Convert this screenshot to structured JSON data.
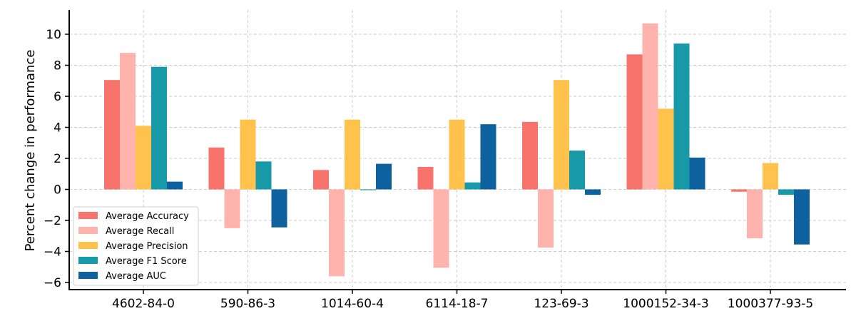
{
  "chart_data": {
    "type": "bar",
    "title": "",
    "xlabel": "",
    "ylabel": "Percent change in performance",
    "ylim": [
      -6.4,
      11.5
    ],
    "yticks": [
      -6,
      -4,
      -2,
      0,
      2,
      4,
      6,
      8,
      10
    ],
    "grid": true,
    "legend_position": "lower-left",
    "categories": [
      "4602-84-0",
      "590-86-3",
      "1014-60-4",
      "6114-18-7",
      "123-69-3",
      "1000152-34-3",
      "1000377-93-5"
    ],
    "series": [
      {
        "name": "Average Accuracy",
        "color": "#f8736b",
        "values": [
          7.05,
          2.7,
          1.25,
          1.45,
          4.35,
          8.7,
          -0.15
        ]
      },
      {
        "name": "Average Recall",
        "color": "#ffb3ad",
        "values": [
          8.8,
          -2.5,
          -5.6,
          -5.05,
          -3.75,
          10.7,
          -3.15
        ]
      },
      {
        "name": "Average Precision",
        "color": "#ffc34d",
        "values": [
          4.1,
          4.5,
          4.5,
          4.5,
          7.05,
          5.2,
          1.7
        ]
      },
      {
        "name": "Average F1 Score",
        "color": "#1899a8",
        "values": [
          7.9,
          1.8,
          -0.05,
          0.45,
          2.5,
          9.4,
          -0.35
        ]
      },
      {
        "name": "Average AUC",
        "color": "#0d619e",
        "values": [
          0.5,
          -2.45,
          1.65,
          4.2,
          -0.35,
          2.05,
          -3.55
        ]
      }
    ]
  }
}
